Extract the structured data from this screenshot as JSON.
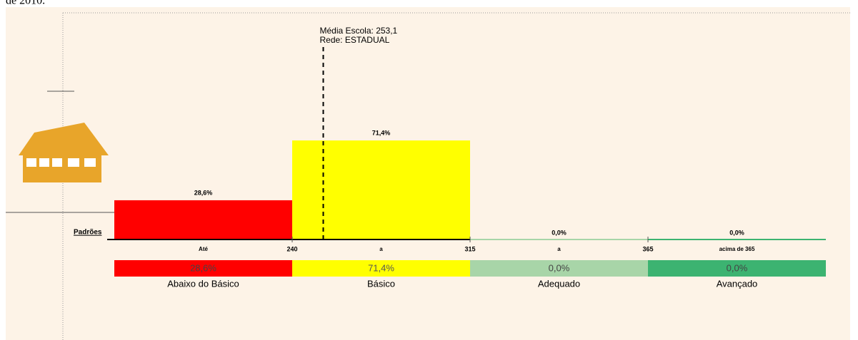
{
  "page_header": "de 2010.",
  "chart_data": {
    "type": "bar",
    "categories": [
      "Abaixo do Básico",
      "Básico",
      "Adequado",
      "Avançado"
    ],
    "values": [
      28.6,
      71.4,
      0.0,
      0.0
    ],
    "value_labels": [
      "28,6%",
      "71,4%",
      "0,0%",
      "0,0%"
    ],
    "colors": [
      "#ff0000",
      "#ffff00",
      "#a8d5a8",
      "#3cb371"
    ],
    "axis_label": "Padrões",
    "cutpoints": [
      240,
      315,
      365
    ],
    "range_labels": [
      "Até",
      "a",
      "a",
      "acima de 365"
    ],
    "mean": 253.1,
    "annotation": [
      "Média Escola: 253,1",
      "Rede: ESTADUAL"
    ]
  }
}
